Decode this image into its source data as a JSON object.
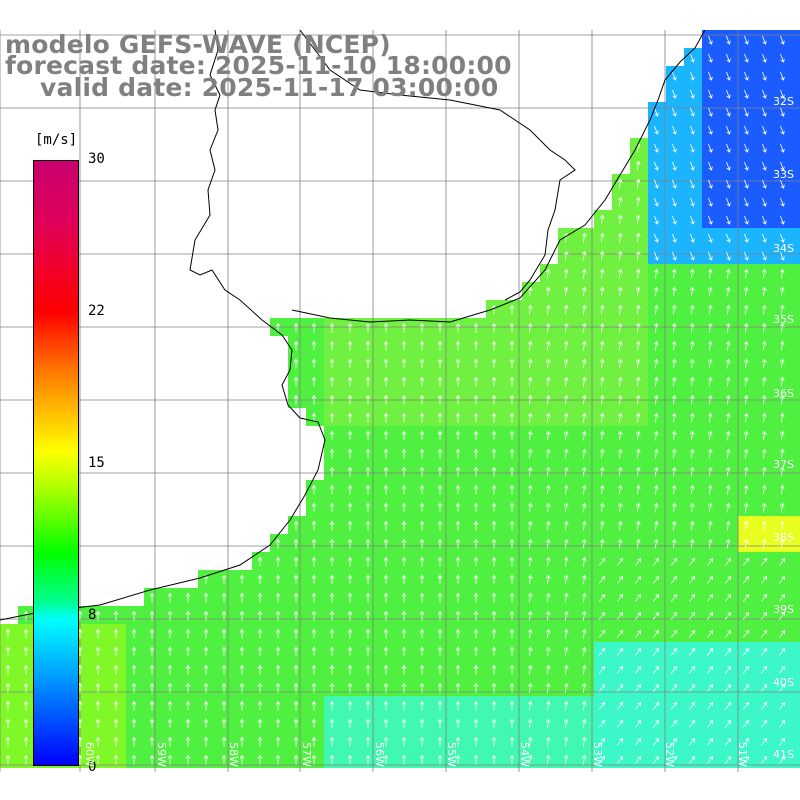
{
  "titles": {
    "line1": "modelo GEFS-WAVE (NCEP)",
    "line2": "forecast date: 2025-11-10 18:00:00",
    "line3": "valid date: 2025-11-17 03:00:00"
  },
  "colorbar": {
    "unit": "[m/s]",
    "ticks": [
      "30",
      "22",
      "15",
      "8",
      "0"
    ],
    "tick_values": [
      30,
      22,
      15,
      8,
      0
    ],
    "range": [
      0,
      30
    ],
    "colors": [
      "#c8006e",
      "#ff0000",
      "#ff7a00",
      "#ffff00",
      "#00ff00",
      "#00ffff",
      "#0080ff",
      "#0000ff"
    ]
  },
  "axes": {
    "lat_labels": [
      "32S",
      "33S",
      "34S",
      "35S",
      "36S",
      "37S",
      "38S",
      "39S",
      "40S",
      "41S"
    ],
    "lon_labels": [
      "60W",
      "59W",
      "58W",
      "57W",
      "56W",
      "55W",
      "54W",
      "53W",
      "52W",
      "51W"
    ]
  },
  "map": {
    "land_color": "#ffffff",
    "coast_color": "#000000",
    "grid_color": "#808080",
    "arrow_color": "#ffffff",
    "ocean_base_color": "#3cf03c"
  }
}
